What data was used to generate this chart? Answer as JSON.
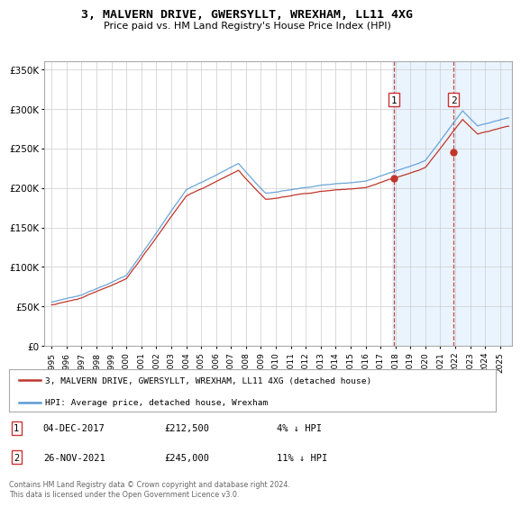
{
  "title": "3, MALVERN DRIVE, GWERSYLLT, WREXHAM, LL11 4XG",
  "subtitle": "Price paid vs. HM Land Registry's House Price Index (HPI)",
  "legend_line1": "3, MALVERN DRIVE, GWERSYLLT, WREXHAM, LL11 4XG (detached house)",
  "legend_line2": "HPI: Average price, detached house, Wrexham",
  "footer1": "Contains HM Land Registry data © Crown copyright and database right 2024.",
  "footer2": "This data is licensed under the Open Government Licence v3.0.",
  "annotation1_date": "04-DEC-2017",
  "annotation1_price": "£212,500",
  "annotation1_hpi": "4% ↓ HPI",
  "annotation2_date": "26-NOV-2021",
  "annotation2_price": "£245,000",
  "annotation2_hpi": "11% ↓ HPI",
  "sale1_x": 2017.92,
  "sale1_y": 212500,
  "sale2_x": 2021.9,
  "sale2_y": 245000,
  "hpi_color": "#5b9bd5",
  "price_color": "#c0362c",
  "shade_color": "#ddeeff",
  "background_shaded_start": 2017.75,
  "ylim": [
    0,
    360000
  ],
  "xlim_start": 1994.5,
  "xlim_end": 2025.8,
  "yticks": [
    0,
    50000,
    100000,
    150000,
    200000,
    250000,
    300000,
    350000
  ],
  "xtick_years": [
    1995,
    1996,
    1997,
    1998,
    1999,
    2000,
    2001,
    2002,
    2003,
    2004,
    2005,
    2006,
    2007,
    2008,
    2009,
    2010,
    2011,
    2012,
    2013,
    2014,
    2015,
    2016,
    2017,
    2018,
    2019,
    2020,
    2021,
    2022,
    2023,
    2024,
    2025
  ]
}
